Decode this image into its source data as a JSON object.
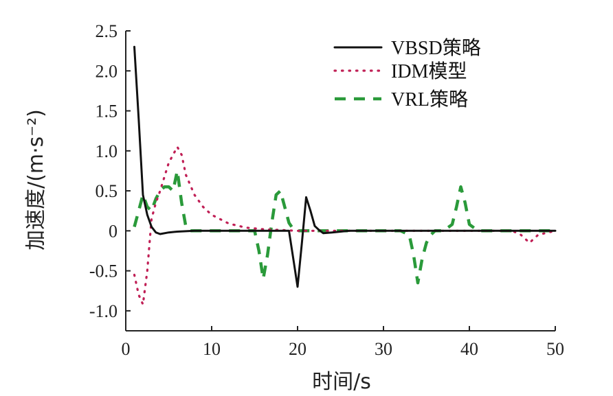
{
  "chart_data": {
    "type": "line",
    "xlabel": "时间/s",
    "ylabel": "加速度/(m·s⁻²)",
    "xlim": [
      0,
      50
    ],
    "ylim": [
      -1.25,
      2.5
    ],
    "x_ticks": [
      "0",
      "10",
      "20",
      "30",
      "40",
      "50"
    ],
    "y_ticks": [
      "2.5",
      "2.0",
      "1.5",
      "1.0",
      "0.5",
      "0",
      "-0.5",
      "-1.0"
    ],
    "x_tick_values": [
      0,
      10,
      20,
      30,
      40,
      50
    ],
    "y_tick_values": [
      2.5,
      2.0,
      1.5,
      1.0,
      0.5,
      0,
      -0.5,
      -1.0
    ],
    "grid": false,
    "legend_position": "top-right",
    "series": [
      {
        "name": "VBSD策略",
        "color": "#111111",
        "style": "solid",
        "x": [
          1,
          1.5,
          2,
          2.5,
          3,
          3.5,
          4,
          5,
          6,
          8,
          10,
          15,
          19,
          19.5,
          20,
          20.5,
          21,
          21.5,
          22,
          22.5,
          23,
          24,
          26,
          30,
          40,
          50
        ],
        "y": [
          2.3,
          1.4,
          0.45,
          0.2,
          0.05,
          -0.02,
          -0.04,
          -0.02,
          -0.01,
          0,
          0,
          0,
          0,
          -0.35,
          -0.7,
          -0.15,
          0.42,
          0.25,
          0.06,
          0.01,
          -0.03,
          -0.02,
          0,
          0,
          0,
          0
        ]
      },
      {
        "name": "IDM模型",
        "color": "#c01f55",
        "style": "dotted",
        "x": [
          1,
          1.5,
          2,
          2.5,
          3,
          3.5,
          4,
          5,
          6,
          6.5,
          7,
          8,
          9,
          10,
          12,
          14,
          16,
          18,
          20,
          22,
          25,
          30,
          40,
          45,
          46,
          47,
          48,
          50
        ],
        "y": [
          -0.55,
          -0.8,
          -0.92,
          -0.5,
          0.15,
          0.35,
          0.5,
          0.85,
          1.05,
          0.95,
          0.7,
          0.45,
          0.3,
          0.2,
          0.09,
          0.04,
          0.02,
          0.01,
          0,
          0,
          0,
          0,
          0,
          0,
          -0.05,
          -0.15,
          -0.05,
          0
        ]
      },
      {
        "name": "VRL策略",
        "color": "#2a9a3a",
        "style": "dashed",
        "x": [
          1,
          1.5,
          2,
          2.5,
          3,
          3.5,
          4,
          4.5,
          5,
          5.5,
          6,
          6.5,
          7,
          7.5,
          8,
          10,
          12,
          14,
          15,
          15.5,
          16,
          16.5,
          17,
          17.5,
          18,
          18.5,
          19,
          19.5,
          20,
          25,
          30,
          32,
          33,
          33.5,
          34,
          34.5,
          35,
          35.5,
          36,
          37,
          38,
          38.5,
          39,
          39.5,
          40,
          41,
          45,
          50
        ],
        "y": [
          0.05,
          0.25,
          0.45,
          0.3,
          0.25,
          0.4,
          0.5,
          0.55,
          0.55,
          0.5,
          0.75,
          0.35,
          0.05,
          0,
          0,
          0,
          0,
          0,
          0,
          -0.25,
          -0.6,
          -0.3,
          0.1,
          0.45,
          0.5,
          0.3,
          0.1,
          0.02,
          0,
          0,
          0,
          0,
          -0.05,
          -0.3,
          -0.65,
          -0.35,
          -0.15,
          -0.05,
          0,
          0,
          0.08,
          0.3,
          0.55,
          0.35,
          0.08,
          0,
          0,
          0
        ]
      }
    ]
  }
}
